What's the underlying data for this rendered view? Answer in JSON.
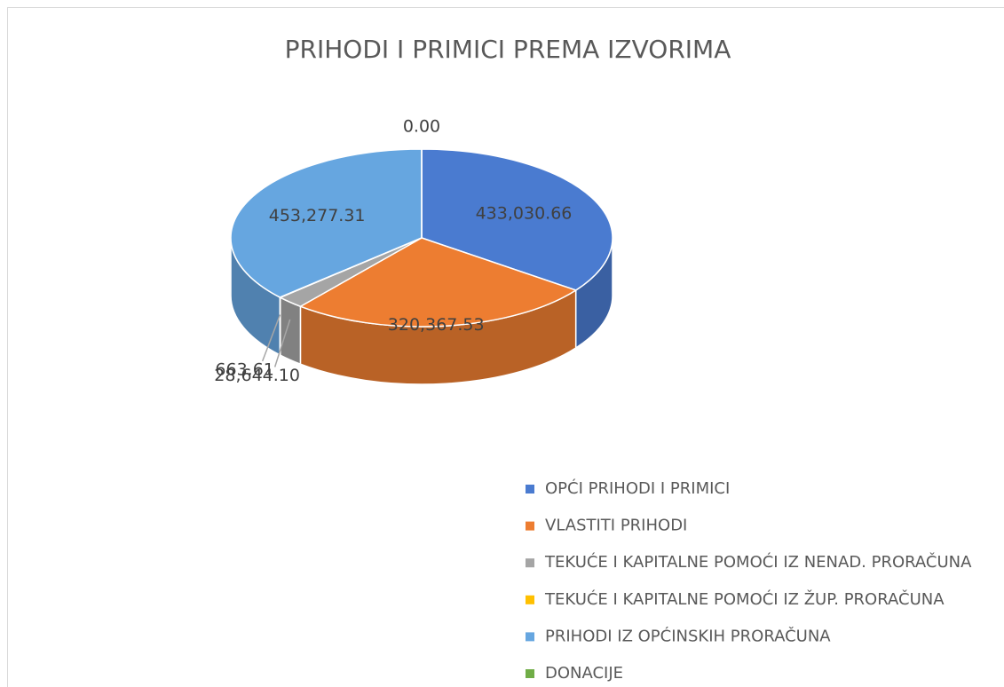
{
  "chart_data": {
    "type": "pie3d",
    "title": "PRIHODI I PRIMICI PREMA IZVORIMA",
    "categories": [
      "OPĆI PRIHODI I PRIMICI",
      "VLASTITI PRIHODI",
      "TEKUĆE I KAPITALNE POMOĆI IZ NENAD. PRORAČUNA",
      "TEKUĆE I KAPITALNE POMOĆI IZ ŽUP. PRORAČUNA",
      "PRIHODI IZ OPĆINSKIH PRORAČUNA",
      "DONACIJE"
    ],
    "values": [
      433030.66,
      320367.53,
      28644.1,
      663.61,
      453277.31,
      0.0
    ],
    "value_labels": [
      "433,030.66",
      "320,367.53",
      "28,644.10",
      "663.61",
      "453,277.31",
      "0.00"
    ],
    "colors": [
      "#4a7bd0",
      "#ed7d31",
      "#a5a5a5",
      "#ffc000",
      "#66a6e0",
      "#70ad47"
    ],
    "legend": "bottom-right"
  }
}
